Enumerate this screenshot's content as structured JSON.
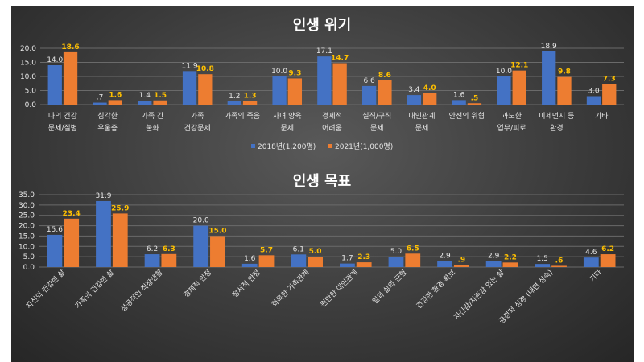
{
  "colors": {
    "series1": "#4472c4",
    "series2": "#ed7d31",
    "label2": "#ffc000"
  },
  "legend": {
    "series1": "2018년(1,200명)",
    "series2": "2021년(1,000명)"
  },
  "chart_data": [
    {
      "type": "bar",
      "title": "인생 위기",
      "ylim": [
        0,
        20
      ],
      "yticks": [
        "0.0",
        "5.0",
        "10.0",
        "15.0",
        "20.0"
      ],
      "grid": true,
      "legend_position": "bottom",
      "categories": [
        [
          "나의 건강",
          "문제/질병"
        ],
        [
          "심각한",
          "우울증"
        ],
        [
          "가족 간",
          "불화"
        ],
        [
          "가족",
          "건강문제"
        ],
        [
          "가족의 죽음"
        ],
        [
          "자녀 양육",
          "문제"
        ],
        [
          "경제적",
          "어려움"
        ],
        [
          "실직/구직",
          "문제"
        ],
        [
          "대인관계",
          "문제"
        ],
        [
          "안전의 위협"
        ],
        [
          "과도한",
          "업무/피로"
        ],
        [
          "미세먼지 등",
          "환경"
        ],
        [
          "기타"
        ]
      ],
      "series": [
        {
          "name": "2018년(1,200명)",
          "values": [
            14.0,
            0.7,
            1.4,
            11.9,
            1.2,
            10.0,
            17.1,
            6.6,
            3.4,
            1.6,
            10.0,
            18.9,
            3.0
          ],
          "labels": [
            "14.0",
            ".7",
            "1.4",
            "11.9",
            "1.2",
            "10.0",
            "17.1",
            "6.6",
            "3.4",
            "1.6",
            "10.0",
            "18.9",
            "3.0"
          ]
        },
        {
          "name": "2021년(1,000명)",
          "values": [
            18.6,
            1.6,
            1.5,
            10.8,
            1.3,
            9.3,
            14.7,
            8.6,
            4.0,
            0.5,
            12.1,
            9.8,
            7.3
          ],
          "labels": [
            "18.6",
            "1.6",
            "1.5",
            "10.8",
            "1.3",
            "9.3",
            "14.7",
            "8.6",
            "4.0",
            ".5",
            "12.1",
            "9.8",
            "7.3"
          ]
        }
      ]
    },
    {
      "type": "bar",
      "title": "인생 목표",
      "ylim": [
        0,
        35
      ],
      "yticks": [
        "0.0",
        "5.0",
        "10.0",
        "15.0",
        "20.0",
        "25.0",
        "30.0",
        "35.0"
      ],
      "grid": true,
      "categories": [
        "자신의 건강한 삶",
        "가족의 건강한 삶",
        "성공적인 직장생활",
        "경제적 안정",
        "정서적 안정",
        "화목한 가족관계",
        "원만한 대인관계",
        "일과 삶의 균형",
        "건강한 환경 확보",
        "자신감/자존감 있는 삶",
        "긍정적 성장 (내면 성숙)",
        "기타"
      ],
      "series": [
        {
          "name": "2018년(1,200명)",
          "values": [
            15.6,
            31.9,
            6.2,
            20.0,
            1.6,
            6.1,
            1.7,
            5.0,
            2.9,
            2.9,
            1.5,
            4.6
          ],
          "labels": [
            "15.6",
            "31.9",
            "6.2",
            "20.0",
            "1.6",
            "6.1",
            "1.7",
            "5.0",
            "2.9",
            "2.9",
            "1.5",
            "4.6"
          ]
        },
        {
          "name": "2021년(1,000명)",
          "values": [
            23.4,
            25.9,
            6.3,
            15.0,
            5.7,
            5.0,
            2.3,
            6.5,
            0.9,
            2.2,
            0.6,
            6.2
          ],
          "labels": [
            "23.4",
            "25.9",
            "6.3",
            "15.0",
            "5.7",
            "5.0",
            "2.3",
            "6.5",
            ".9",
            "2.2",
            ".6",
            "6.2"
          ]
        }
      ]
    }
  ]
}
